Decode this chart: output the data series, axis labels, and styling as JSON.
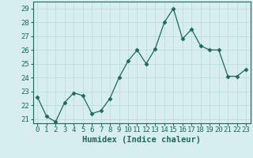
{
  "x": [
    0,
    1,
    2,
    3,
    4,
    5,
    6,
    7,
    8,
    9,
    10,
    11,
    12,
    13,
    14,
    15,
    16,
    17,
    18,
    19,
    20,
    21,
    22,
    23
  ],
  "y": [
    22.6,
    21.2,
    20.8,
    22.2,
    22.9,
    22.7,
    21.4,
    21.6,
    22.5,
    24.0,
    25.2,
    26.0,
    25.0,
    26.1,
    28.0,
    29.0,
    26.8,
    27.5,
    26.3,
    26.0,
    26.0,
    24.1,
    24.1,
    24.6
  ],
  "line_color": "#1a6b5a",
  "marker": "D",
  "marker_size": 2.5,
  "bg_color": "#d6eeee",
  "grid_color": "#c0dcdc",
  "xlabel": "Humidex (Indice chaleur)",
  "xlim": [
    -0.5,
    23.5
  ],
  "ylim": [
    20.7,
    29.5
  ],
  "yticks": [
    21,
    22,
    23,
    24,
    25,
    26,
    27,
    28,
    29
  ],
  "xticks": [
    0,
    1,
    2,
    3,
    4,
    5,
    6,
    7,
    8,
    9,
    10,
    11,
    12,
    13,
    14,
    15,
    16,
    17,
    18,
    19,
    20,
    21,
    22,
    23
  ],
  "tick_label_fontsize": 6.5,
  "xlabel_fontsize": 7.5
}
